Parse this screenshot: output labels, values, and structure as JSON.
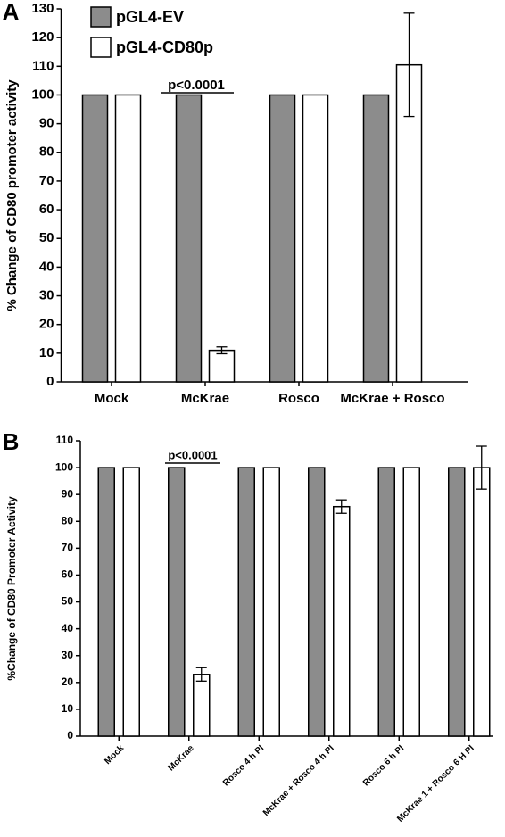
{
  "chart_data": [
    {
      "type": "bar",
      "label": "A",
      "y_label": "% Change of CD80 promoter activity",
      "annotation": "p<0.0001",
      "categories": [
        "Mock",
        "McKrae",
        "Rosco",
        "McKrae + Rosco"
      ],
      "series": [
        {
          "name": "pGL4-EV",
          "color": "#8c8c8c",
          "values": [
            100,
            100,
            100,
            100
          ]
        },
        {
          "name": "pGL4-CD80p",
          "color": "#ffffff",
          "values": [
            100,
            11,
            100,
            110.5
          ],
          "errors": [
            null,
            1.2,
            null,
            18
          ]
        }
      ],
      "ylim": [
        0,
        130
      ],
      "yticks": [
        0,
        10,
        20,
        30,
        40,
        50,
        60,
        70,
        80,
        90,
        100,
        110,
        120,
        130
      ]
    },
    {
      "type": "bar",
      "label": "B",
      "y_label": "%Change of  CD80 Promoter Activity",
      "annotation": "p<0.0001",
      "categories": [
        "Mock",
        "McKrae",
        "Rosco 4 h PI",
        "McKrae + Rosco 4 h PI",
        "Rosco 6 h PI",
        "McKrae 1 + Rosco 6 H PI"
      ],
      "series": [
        {
          "color": "#8c8c8c",
          "values": [
            100,
            100,
            100,
            100,
            100,
            100
          ]
        },
        {
          "color": "#ffffff",
          "values": [
            100,
            23,
            100,
            85.5,
            100,
            100
          ],
          "errors": [
            null,
            2.5,
            null,
            2.5,
            null,
            8
          ]
        }
      ],
      "ylim": [
        0,
        110
      ],
      "yticks": [
        0,
        10,
        20,
        30,
        40,
        50,
        60,
        70,
        80,
        90,
        100,
        110
      ]
    }
  ]
}
